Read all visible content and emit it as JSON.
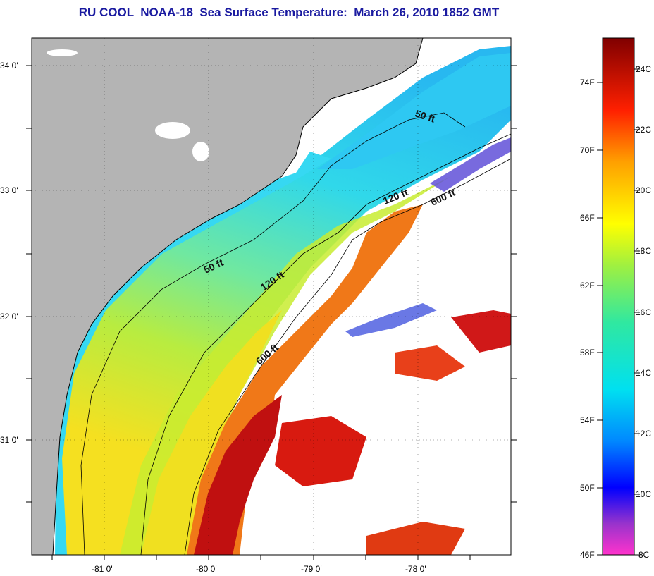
{
  "title": "RU COOL  NOAA-18  Sea Surface Temperature:  March 26, 2010 1852 GMT",
  "map": {
    "lon_ticks": [
      "-81 0'",
      "-80 0'",
      "-79 0'",
      "-78 0'"
    ],
    "lat_ticks": [
      "34 0'",
      "33 0'",
      "32 0'",
      "31 0'"
    ],
    "contour_labels": [
      "50 ft",
      "120 ft",
      "600 ft",
      "50 ft",
      "120 ft",
      "600 ft"
    ],
    "colors": {
      "land": "#b4b4b4",
      "cloud": "#ffffff",
      "cool_water": "#2fd6f0",
      "mid_water": "#8fe07a",
      "warm_water": "#f2e01a",
      "hot_water": "#e8330d",
      "gulf_stream": "#b80f0a"
    }
  },
  "colorbar": {
    "f_labels": [
      "74F",
      "70F",
      "66F",
      "62F",
      "58F",
      "54F",
      "50F",
      "46F"
    ],
    "c_labels": [
      "24C",
      "22C",
      "20C",
      "18C",
      "16C",
      "14C",
      "12C",
      "10C",
      "8C"
    ]
  }
}
